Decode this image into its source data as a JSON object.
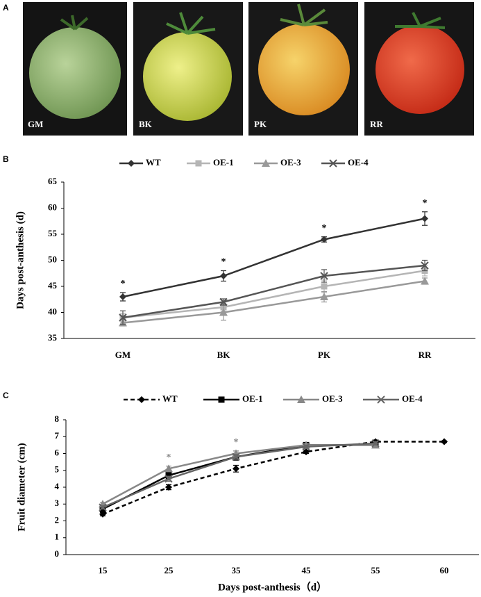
{
  "panels": [
    "A",
    "B",
    "C"
  ],
  "photos": [
    "GM",
    "BK",
    "PK",
    "RR"
  ],
  "chart_data": [
    {
      "type": "line",
      "ylabel": "Days post-anthesis (d)",
      "categories": [
        "GM",
        "BK",
        "PK",
        "RR"
      ],
      "ylim": [
        35,
        65
      ],
      "yticks": [
        35,
        40,
        45,
        50,
        55,
        60,
        65
      ],
      "series": [
        {
          "name": "WT",
          "color": "#333333",
          "marker": "diamond",
          "values": [
            43,
            47,
            54,
            58
          ],
          "errors": [
            0.8,
            1,
            0.5,
            1.3
          ]
        },
        {
          "name": "OE-1",
          "color": "#b5b5b5",
          "marker": "square",
          "values": [
            39,
            41,
            45,
            48
          ],
          "errors": [
            0.8,
            0.8,
            1.2,
            1
          ]
        },
        {
          "name": "OE-3",
          "color": "#999999",
          "marker": "triangle",
          "values": [
            38,
            40,
            43,
            46
          ],
          "errors": [
            0.6,
            1.5,
            1,
            0.6
          ]
        },
        {
          "name": "OE-4",
          "color": "#555555",
          "marker": "x",
          "values": [
            39,
            42,
            47,
            49
          ],
          "errors": [
            1.3,
            0.6,
            1.2,
            1
          ]
        }
      ],
      "annotations": [
        {
          "text": "*",
          "category": "GM"
        },
        {
          "text": "*",
          "category": "BK"
        },
        {
          "text": "*",
          "category": "PK"
        },
        {
          "text": "*",
          "category": "RR"
        }
      ]
    },
    {
      "type": "line",
      "ylabel": "Fruit diameter (cm)",
      "xlabel": "Days post-anthesis（d）",
      "categories": [
        "15",
        "25",
        "35",
        "45",
        "55",
        "60"
      ],
      "ylim": [
        0,
        8
      ],
      "yticks": [
        0,
        1,
        2,
        3,
        4,
        5,
        6,
        7,
        8
      ],
      "series": [
        {
          "name": "WT",
          "color": "#000000",
          "marker": "diamond",
          "dashed": true,
          "values": [
            2.4,
            4.0,
            5.1,
            6.1,
            6.7,
            6.7
          ],
          "errors": [
            0.1,
            0.15,
            0.2,
            0.1,
            0.1,
            0.05
          ]
        },
        {
          "name": "OE-1",
          "color": "#000000",
          "marker": "square",
          "values": [
            2.7,
            4.7,
            5.8,
            6.5,
            6.5,
            null
          ],
          "errors": [
            0.1,
            0.2,
            0.2,
            0.1,
            0.1,
            null
          ]
        },
        {
          "name": "OE-3",
          "color": "#888888",
          "marker": "triangle",
          "values": [
            3.0,
            5.1,
            6.0,
            6.5,
            6.5,
            null
          ],
          "errors": [
            0.1,
            0.15,
            0.15,
            0.1,
            0.1,
            null
          ]
        },
        {
          "name": "OE-4",
          "color": "#666666",
          "marker": "x",
          "values": [
            2.8,
            4.5,
            5.8,
            6.4,
            6.6,
            null
          ],
          "errors": [
            0.1,
            0.15,
            0.15,
            0.1,
            0.1,
            null
          ]
        }
      ],
      "annotations": [
        {
          "text": "*",
          "category": "25"
        },
        {
          "text": "*",
          "category": "35"
        }
      ]
    }
  ]
}
